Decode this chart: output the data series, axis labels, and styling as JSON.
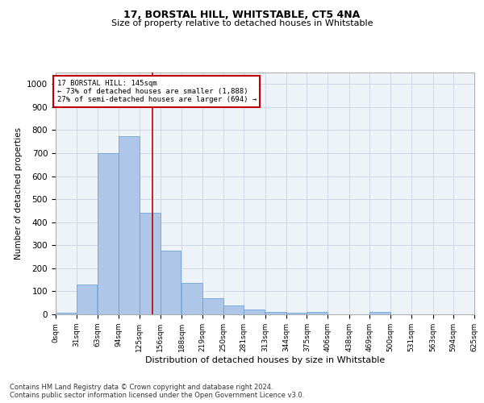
{
  "title1": "17, BORSTAL HILL, WHITSTABLE, CT5 4NA",
  "title2": "Size of property relative to detached houses in Whitstable",
  "xlabel": "Distribution of detached houses by size in Whitstable",
  "ylabel": "Number of detached properties",
  "annotation_line1": "17 BORSTAL HILL: 145sqm",
  "annotation_line2": "← 73% of detached houses are smaller (1,888)",
  "annotation_line3": "27% of semi-detached houses are larger (694) →",
  "property_size": 145,
  "bin_edges": [
    0,
    31,
    63,
    94,
    125,
    156,
    188,
    219,
    250,
    281,
    313,
    344,
    375,
    406,
    438,
    469,
    500,
    531,
    563,
    594,
    625
  ],
  "bar_heights": [
    8,
    128,
    700,
    775,
    440,
    275,
    135,
    70,
    38,
    22,
    12,
    8,
    10,
    0,
    0,
    12,
    0,
    0,
    0,
    0
  ],
  "bar_color": "#aec6e8",
  "bar_edge_color": "#5b9bd5",
  "vline_x": 145,
  "vline_color": "#c00000",
  "annotation_box_color": "#c00000",
  "grid_color": "#d0d8e8",
  "bg_color": "#eef2f9",
  "footer1": "Contains HM Land Registry data © Crown copyright and database right 2024.",
  "footer2": "Contains public sector information licensed under the Open Government Licence v3.0.",
  "ylim": [
    0,
    1050
  ],
  "yticks": [
    0,
    100,
    200,
    300,
    400,
    500,
    600,
    700,
    800,
    900,
    1000
  ]
}
